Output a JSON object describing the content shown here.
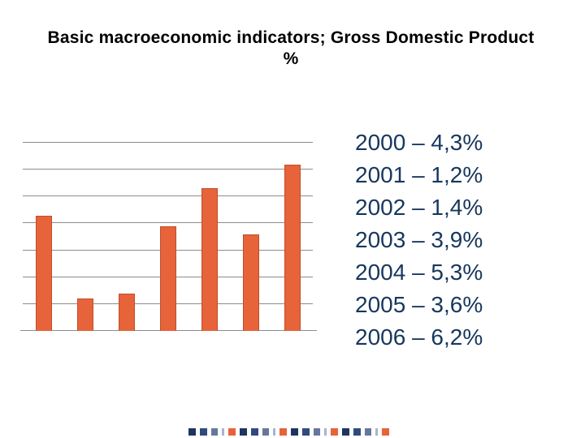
{
  "title": {
    "line1": "Basic macroeconomic indicators; Gross Domestic Product",
    "line2": "%"
  },
  "chart_data": {
    "type": "bar",
    "title": "",
    "xlabel": "",
    "ylabel": "",
    "categories": [
      "2000",
      "2001",
      "2002",
      "2003",
      "2004",
      "2005",
      "2006"
    ],
    "values": [
      4.3,
      1.2,
      1.4,
      3.9,
      5.3,
      3.6,
      6.2
    ],
    "ylim": [
      0,
      7
    ],
    "gridline_step": 1,
    "grid": true,
    "legend": false,
    "axis_tick_labels": false,
    "bar_color": "#e7633a",
    "bar_border_color": "#c04e2b",
    "gridline_color": "#8c8c8c"
  },
  "gdp_list": {
    "text_color": "#17375d",
    "lines": [
      "2000 – 4,3%",
      "2001 – 1,2%",
      "2002 – 1,4%",
      "2003 – 3,9%",
      "2004 – 5,3%",
      "2005 – 3,6%",
      "2006 – 6,2%"
    ]
  },
  "footer": {
    "repeat": 4,
    "dash_sequence": [
      "navy_dark",
      "navy",
      "slate",
      "pale_thin",
      "orange"
    ],
    "colors": {
      "navy_dark": "#1e3563",
      "navy": "#2f4b7c",
      "slate": "#66779e",
      "pale_thin": "#a9b4cc",
      "orange": "#e7633a"
    }
  }
}
